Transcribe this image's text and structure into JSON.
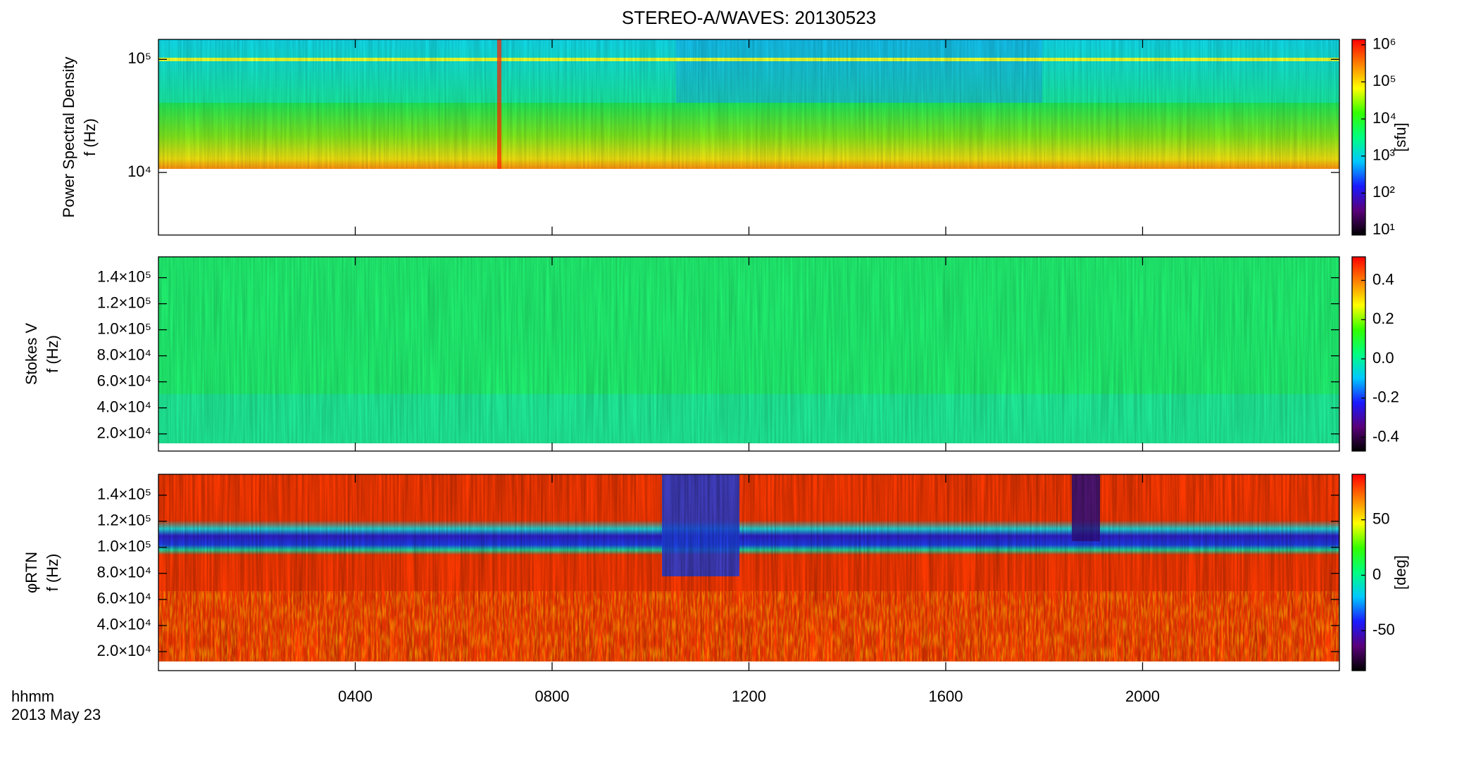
{
  "chart_data": [
    {
      "type": "heatmap",
      "title": "STEREO-A/WAVES: 20130523",
      "ylabel": [
        "Power Spectral Density",
        "f (Hz)"
      ],
      "yscale": "log",
      "ylim": [
        2800,
        150000
      ],
      "yticks": [
        {
          "value": 10000,
          "label": "10⁴"
        },
        {
          "value": 100000,
          "label": "10⁵"
        }
      ],
      "xlim": [
        0,
        24
      ],
      "xticks": [
        {
          "value": 4,
          "label": "0400"
        },
        {
          "value": 8,
          "label": "0800"
        },
        {
          "value": 12,
          "label": "1200"
        },
        {
          "value": 16,
          "label": "1600"
        },
        {
          "value": 20,
          "label": "2000"
        }
      ],
      "colorbar": {
        "label": "[sfu]",
        "scale": "log",
        "lim": [
          7.4,
          1400000
        ],
        "ticks": [
          {
            "value": 10,
            "label": "10¹"
          },
          {
            "value": 100,
            "label": "10²"
          },
          {
            "value": 1000,
            "label": "10³"
          },
          {
            "value": 10000,
            "label": "10⁴"
          },
          {
            "value": 100000,
            "label": "10⁵"
          },
          {
            "value": 1000000,
            "label": "10⁶"
          }
        ],
        "colors": [
          "#000000",
          "#5a007a",
          "#1a1aff",
          "#00c8ff",
          "#00ff80",
          "#33ff00",
          "#ffff00",
          "#ff8000",
          "#ff0000"
        ]
      }
    },
    {
      "type": "heatmap",
      "ylabel": [
        "Stokes V",
        "f (Hz)"
      ],
      "yscale": "linear",
      "ylim": [
        6800,
        156000
      ],
      "yticks": [
        {
          "value": 20000,
          "label": "2.0×10⁴"
        },
        {
          "value": 40000,
          "label": "4.0×10⁴"
        },
        {
          "value": 60000,
          "label": "6.0×10⁴"
        },
        {
          "value": 80000,
          "label": "8.0×10⁴"
        },
        {
          "value": 100000,
          "label": "1.0×10⁵"
        },
        {
          "value": 120000,
          "label": "1.2×10⁵"
        },
        {
          "value": 140000,
          "label": "1.4×10⁵"
        }
      ],
      "xlim": [
        0,
        24
      ],
      "xticks": [
        {
          "value": 4,
          "label": "0400"
        },
        {
          "value": 8,
          "label": "0800"
        },
        {
          "value": 12,
          "label": "1200"
        },
        {
          "value": 16,
          "label": "1600"
        },
        {
          "value": 20,
          "label": "2000"
        }
      ],
      "colorbar": {
        "scale": "linear",
        "lim": [
          -0.47,
          0.52
        ],
        "ticks": [
          -0.4,
          -0.2,
          {
            "value": 0,
            "label": "0.0"
          },
          0.2,
          0.4
        ],
        "colors": [
          "#000000",
          "#5a007a",
          "#1a1aff",
          "#00c8ff",
          "#00ff80",
          "#33ff00",
          "#ffff00",
          "#ff8000",
          "#ff0000"
        ]
      }
    },
    {
      "type": "heatmap",
      "ylabel": [
        "φRTN",
        "f (Hz)"
      ],
      "yscale": "linear",
      "ylim": [
        5400,
        156000
      ],
      "yticks": [
        {
          "value": 20000,
          "label": "2.0×10⁴"
        },
        {
          "value": 40000,
          "label": "4.0×10⁴"
        },
        {
          "value": 60000,
          "label": "6.0×10⁴"
        },
        {
          "value": 80000,
          "label": "8.0×10⁴"
        },
        {
          "value": 100000,
          "label": "1.0×10⁵"
        },
        {
          "value": 120000,
          "label": "1.2×10⁵"
        },
        {
          "value": 140000,
          "label": "1.4×10⁵"
        }
      ],
      "xlim": [
        0,
        24
      ],
      "xticks": [
        {
          "value": 4,
          "label": "0400"
        },
        {
          "value": 8,
          "label": "0800"
        },
        {
          "value": 12,
          "label": "1200"
        },
        {
          "value": 16,
          "label": "1600"
        },
        {
          "value": 20,
          "label": "2000"
        }
      ],
      "xlabel": "hhmm",
      "xsublabel": "2013 May 23",
      "colorbar": {
        "label": "[deg]",
        "scale": "linear",
        "lim": [
          -86,
          91
        ],
        "ticks": [
          -50,
          0,
          50
        ],
        "colors": [
          "#000000",
          "#5a007a",
          "#1a1aff",
          "#00c8ff",
          "#00ff80",
          "#33ff00",
          "#ffff00",
          "#ff8000",
          "#ff0000"
        ]
      }
    }
  ]
}
